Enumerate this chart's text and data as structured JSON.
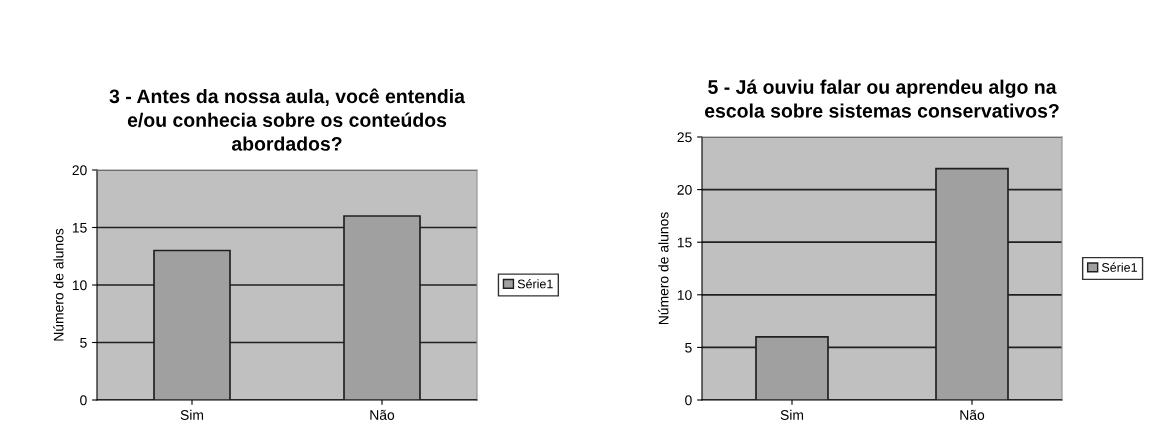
{
  "chart_data": [
    {
      "type": "bar",
      "title": "3 - Antes da nossa aula, você entendia\ne/ou conhecia sobre os conteúdos\nabordados?",
      "ylabel": "Número de alunos",
      "categories": [
        "Sim",
        "Não"
      ],
      "series": [
        {
          "name": "Série1",
          "color": "#a0a0a0",
          "values": [
            13,
            16
          ]
        }
      ],
      "ylim": [
        0,
        20
      ],
      "yticks": [
        0,
        5,
        10,
        15,
        20
      ],
      "grid": "y",
      "legend": "right"
    },
    {
      "type": "bar",
      "title": "5 - Já ouviu falar ou aprendeu algo na\nescola sobre sistemas conservativos?",
      "ylabel": "Número de alunos",
      "categories": [
        "Sim",
        "Não"
      ],
      "series": [
        {
          "name": "Série1",
          "color": "#a0a0a0",
          "values": [
            6,
            22
          ]
        }
      ],
      "ylim": [
        0,
        25
      ],
      "yticks": [
        0,
        5,
        10,
        15,
        20,
        25
      ],
      "grid": "y",
      "legend": "right"
    }
  ]
}
